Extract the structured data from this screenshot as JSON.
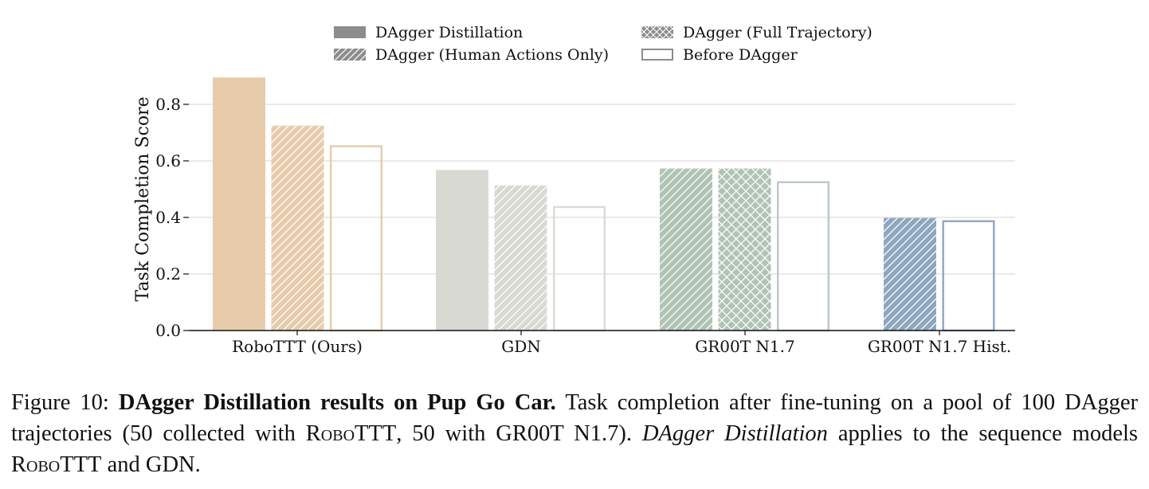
{
  "chart_data": {
    "type": "bar",
    "title": "",
    "xlabel": "",
    "ylabel": "Task Completion Score",
    "ylim": [
      0,
      0.9
    ],
    "yticks": [
      "0.0",
      "0.2",
      "0.4",
      "0.6",
      "0.8"
    ],
    "grid": "horizontal",
    "legend_position": "top-center",
    "categories": [
      "RoboTTT (Ours)",
      "GDN",
      "GR00T N1.7",
      "GR00T N1.7 Hist."
    ],
    "category_colors": [
      "#e6ccab",
      "#d9d9d4",
      "#b0c4b6",
      "#8ea6be"
    ],
    "category_edge_colors": [
      "#e6ccab",
      "#dadad6",
      "#bcc8c7",
      "#8fa7bf"
    ],
    "series": [
      {
        "name": "DAgger Distillation",
        "style": "solid",
        "values": [
          0.895,
          0.568,
          null,
          null
        ]
      },
      {
        "name": "DAgger (Human Actions Only)",
        "style": "diagonal-hatch",
        "values": [
          0.725,
          0.513,
          0.573,
          0.398
        ]
      },
      {
        "name": "DAgger (Full Trajectory)",
        "style": "cross-hatch",
        "values": [
          null,
          null,
          0.573,
          null
        ]
      },
      {
        "name": "Before DAgger",
        "style": "outline",
        "values": [
          0.655,
          0.44,
          0.528,
          0.39
        ]
      }
    ]
  },
  "caption": {
    "label": "Figure 10:",
    "bold": "DAgger Distillation results on Pup Go Car.",
    "text_1": "Task completion after fine-tuning on a pool of 100 DAgger trajectories (50 collected with",
    "robottt_1": "RoboTTT",
    "text_2": ", 50 with GR00T N1.7).",
    "italic": "DAgger Distillation",
    "text_3": "applies to the sequence models",
    "robottt_2": "RoboTTT",
    "text_4": "and GDN."
  }
}
